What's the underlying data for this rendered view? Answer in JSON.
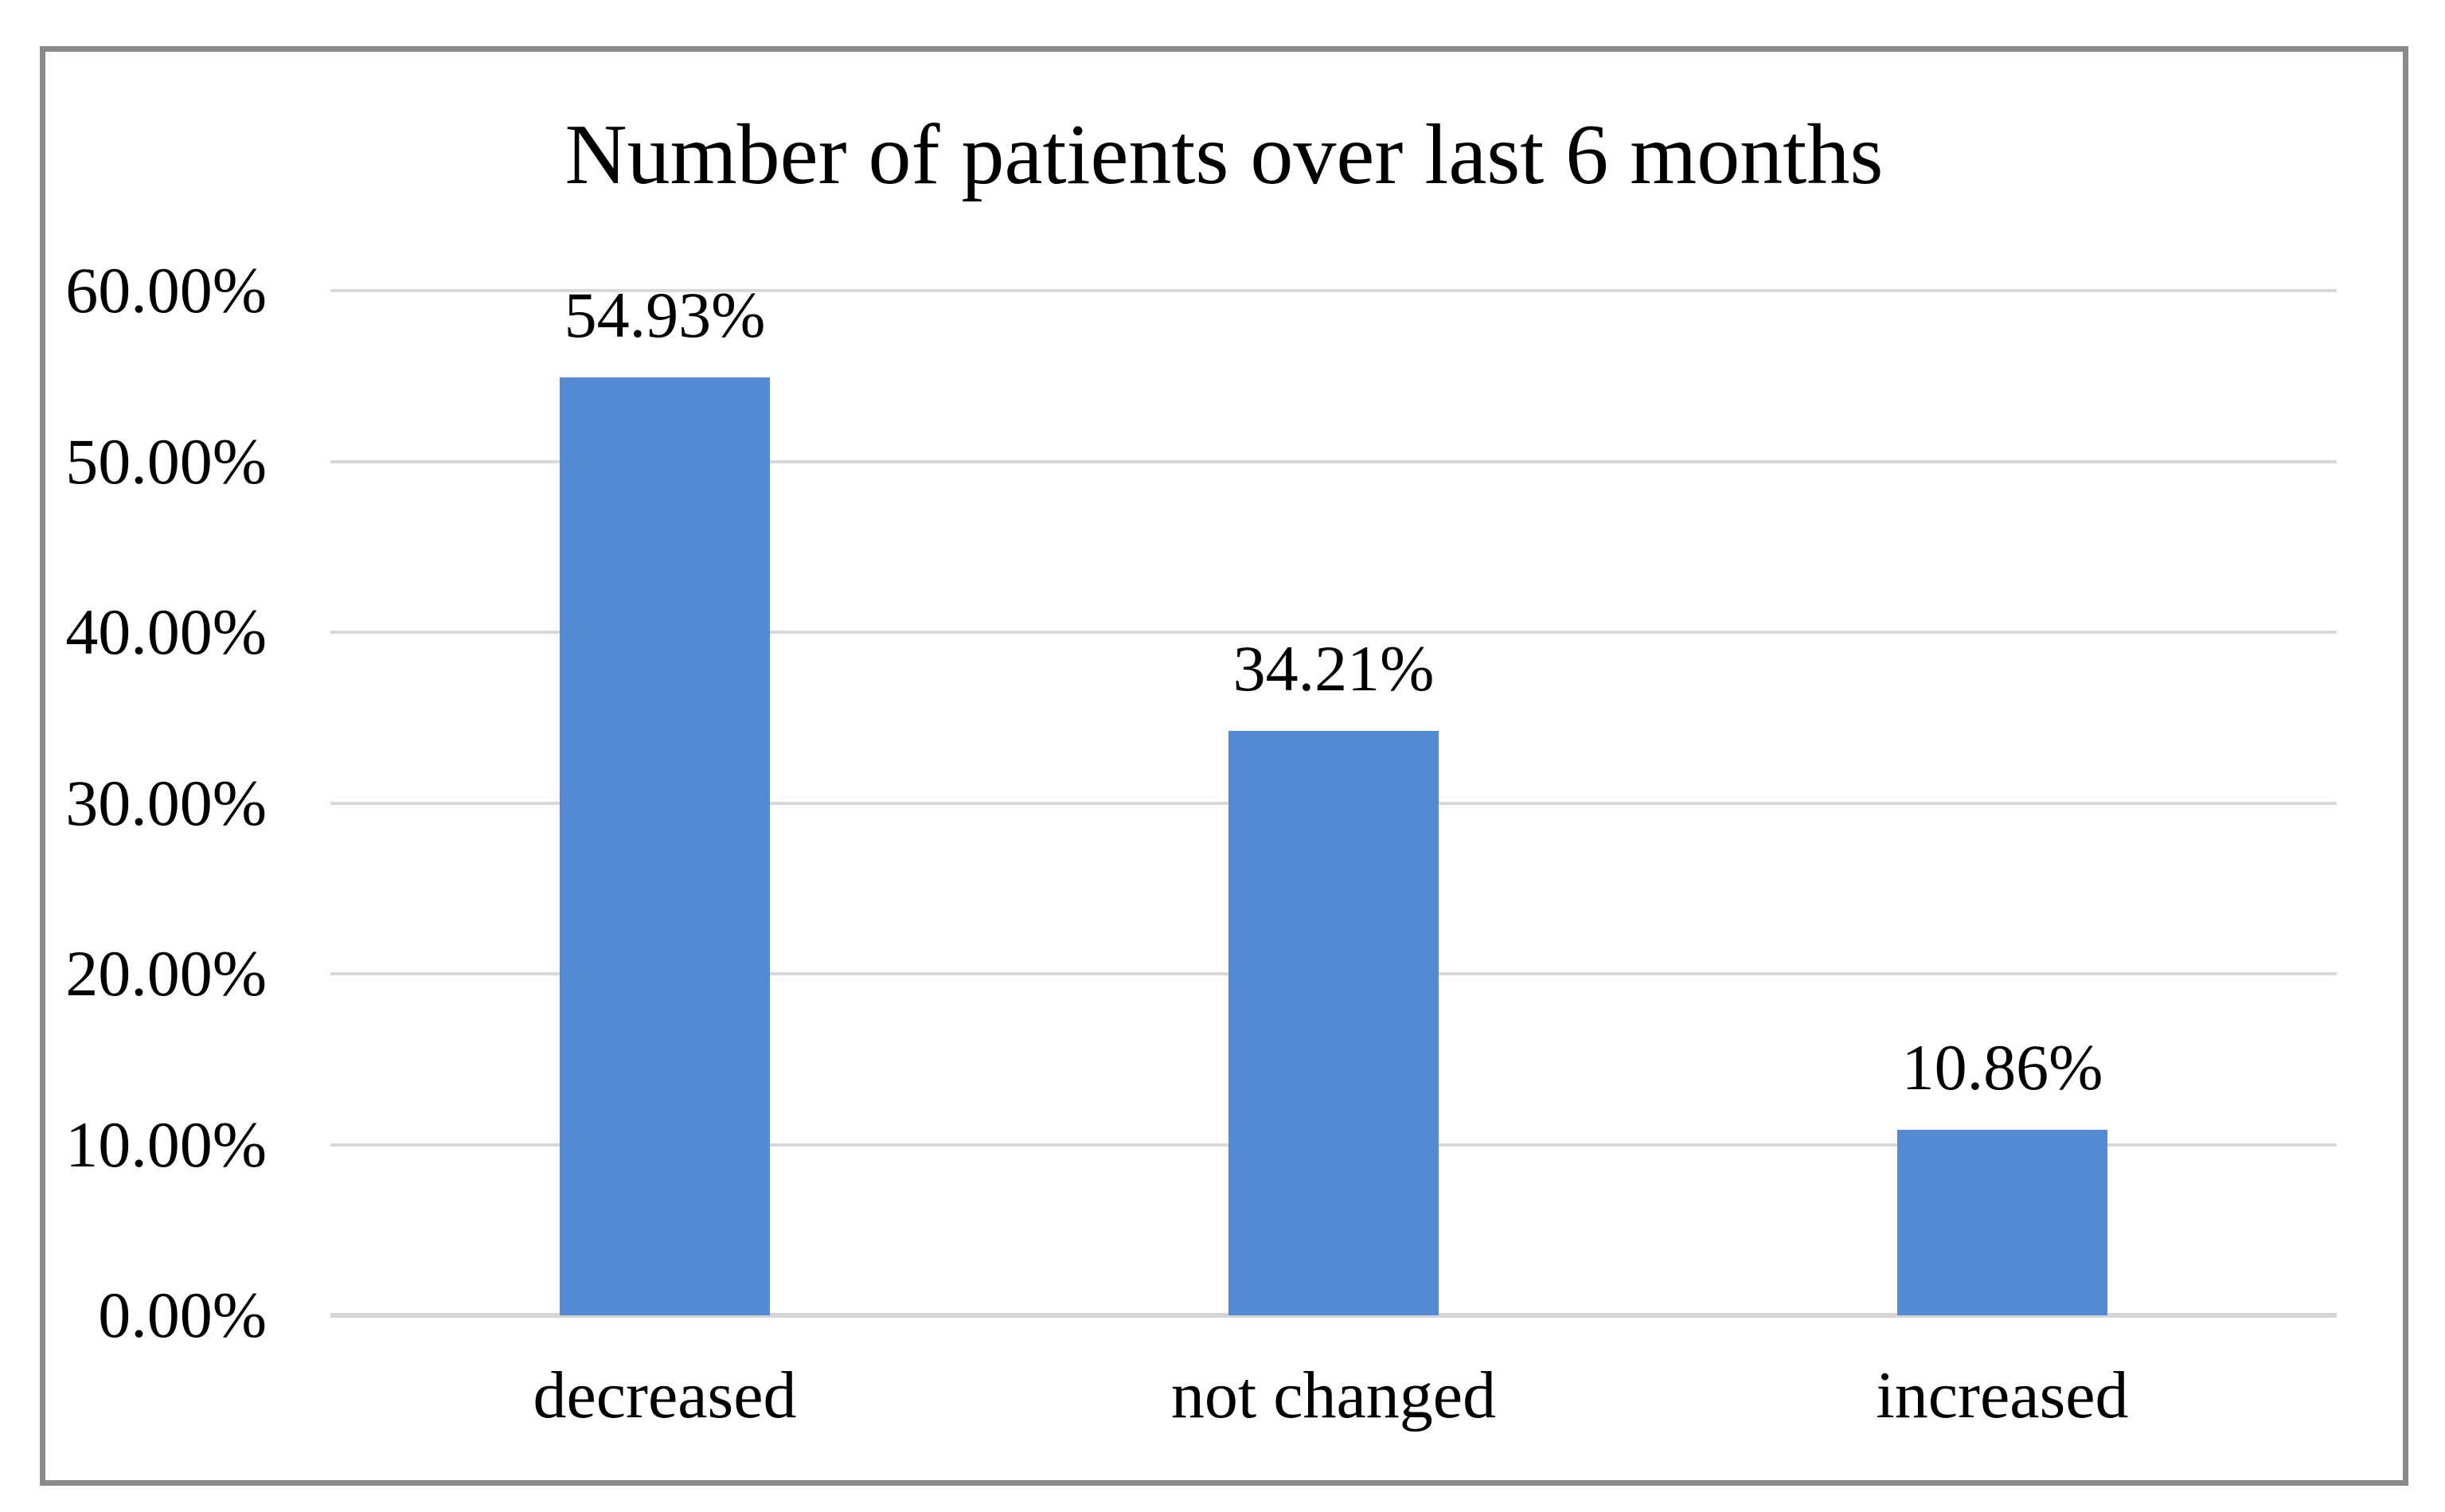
{
  "chart_data": {
    "type": "bar",
    "title": "Number of patients over last 6 months",
    "categories": [
      "decreased",
      "not changed",
      "increased"
    ],
    "values": [
      54.93,
      34.21,
      10.86
    ],
    "value_labels": [
      "54.93%",
      "34.21%",
      "10.86%"
    ],
    "y_ticks": [
      "60.00%",
      "50.00%",
      "40.00%",
      "30.00%",
      "20.00%",
      "10.00%",
      "0.00%"
    ],
    "y_tick_values": [
      60,
      50,
      40,
      30,
      20,
      10,
      0
    ],
    "ylim": [
      0,
      60
    ],
    "xlabel": "",
    "ylabel": "",
    "grid": true,
    "legend": "none",
    "colors": {
      "bar": "#5489D4",
      "gridline": "#D9D9D9",
      "baseline": "#D5D5D5",
      "frame": "#8A8A8A",
      "text": "#000000",
      "background": "#FFFFFF"
    }
  }
}
